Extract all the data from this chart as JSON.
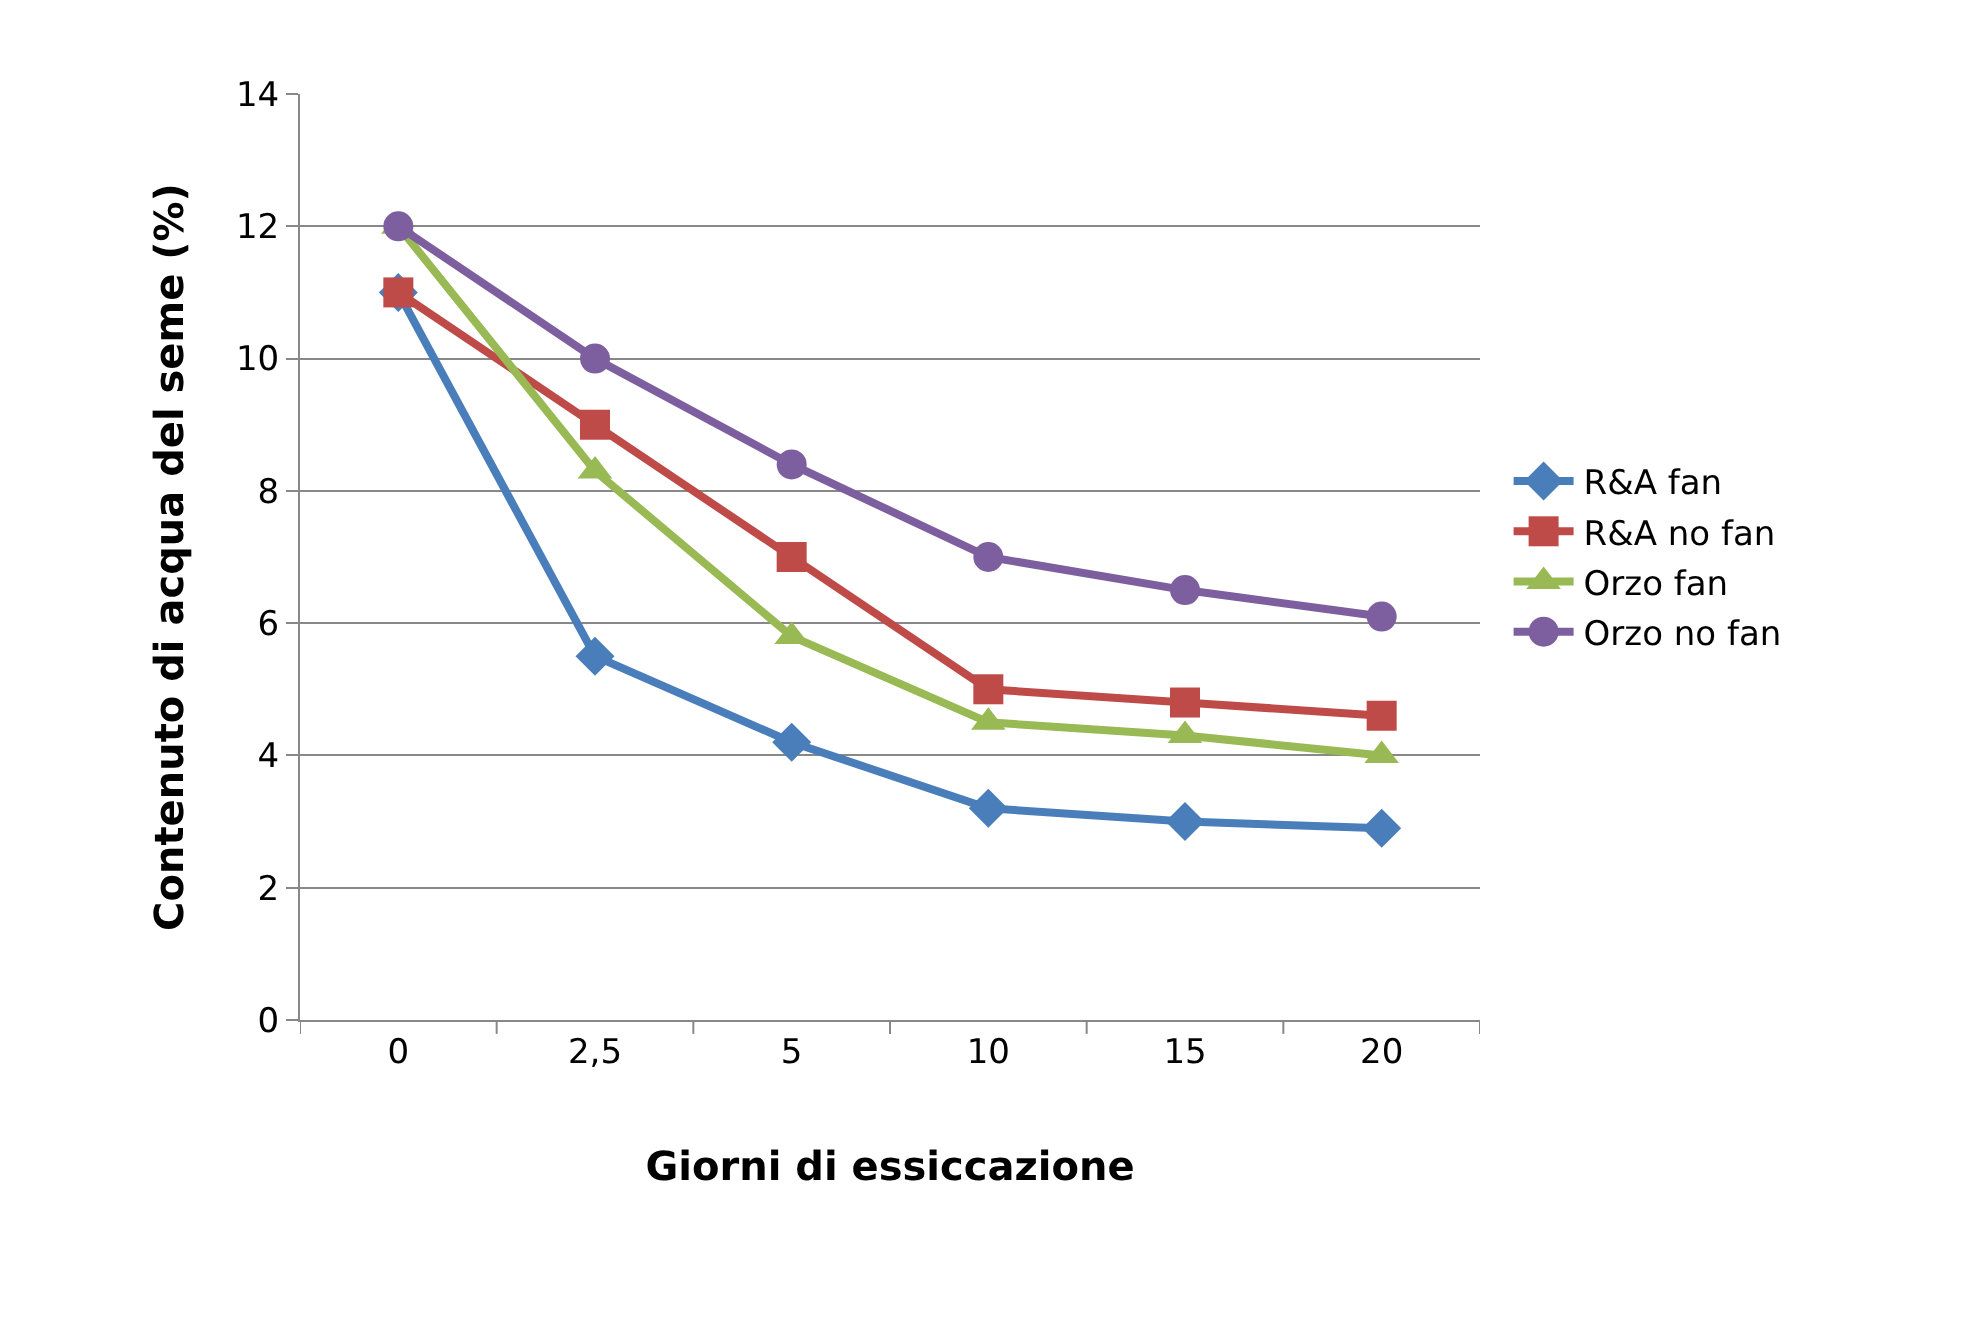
{
  "chart_data": {
    "type": "line",
    "xlabel": "Giorni di essiccazione",
    "ylabel": "Contenuto di acqua del seme (%)",
    "categories": [
      "0",
      "2,5",
      "5",
      "10",
      "15",
      "20"
    ],
    "series": [
      {
        "name": "R&A fan",
        "color": "#4a7ebb",
        "marker": "diamond",
        "values": [
          11,
          5.5,
          4.2,
          3.2,
          3.0,
          2.9
        ]
      },
      {
        "name": "R&A no fan",
        "color": "#be4b48",
        "marker": "square",
        "values": [
          11,
          9,
          7,
          5,
          4.8,
          4.6
        ]
      },
      {
        "name": "Orzo fan",
        "color": "#98b954",
        "marker": "triangle",
        "values": [
          12,
          8.3,
          5.8,
          4.5,
          4.3,
          4.0
        ]
      },
      {
        "name": "Orzo no fan",
        "color": "#7d5fa0",
        "marker": "circle",
        "values": [
          12,
          10,
          8.4,
          7,
          6.5,
          6.1
        ]
      }
    ],
    "ylim": [
      0,
      14
    ],
    "yticks": [
      0,
      2,
      4,
      6,
      8,
      10,
      12,
      14
    ],
    "grid": "y",
    "legend": "right",
    "line_style": "solid"
  }
}
